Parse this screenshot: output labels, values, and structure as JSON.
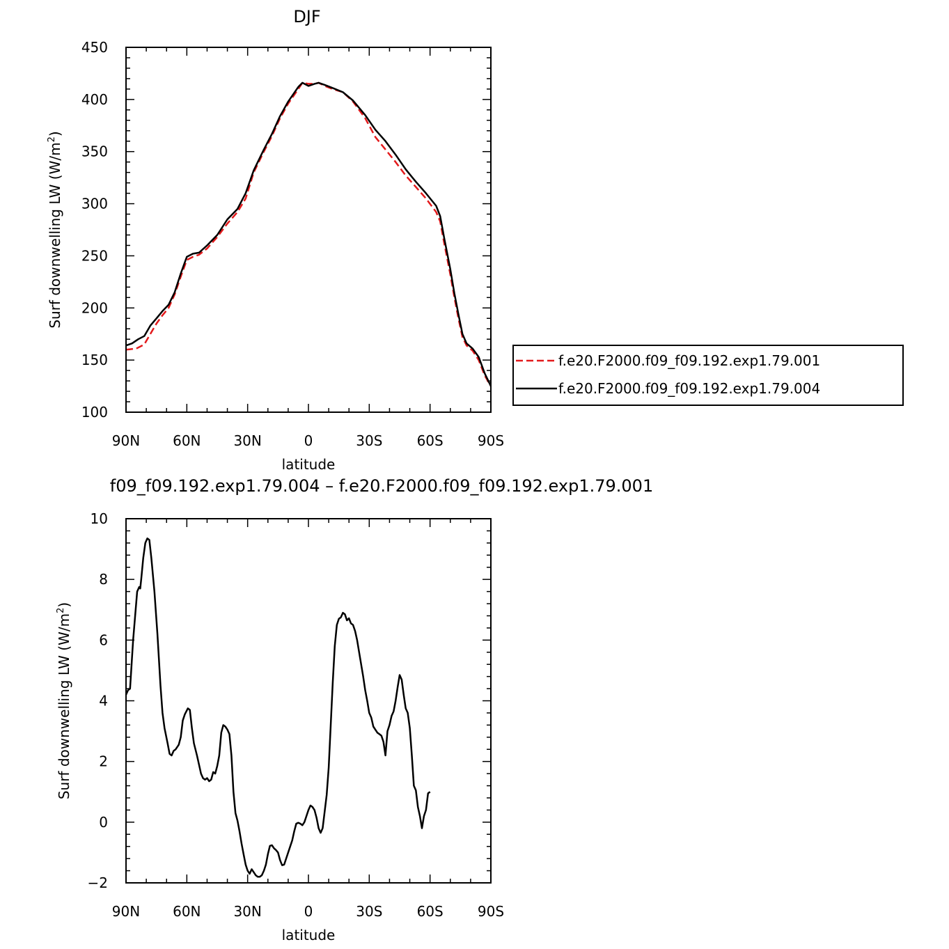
{
  "chart_data": [
    {
      "type": "line",
      "title": "DJF",
      "xlabel": "latitude",
      "ylabel": "Surf downwelling LW (W/m²)",
      "ylabel_text": "Surf  downwelling LW (W/m",
      "ylabel_sup": "2",
      "ylabel_end": ")",
      "xlim": [
        -90,
        90
      ],
      "ylim": [
        100,
        450
      ],
      "xticks": [
        -90,
        -60,
        -30,
        0,
        30,
        60,
        90
      ],
      "xtick_labels": [
        "90N",
        "60N",
        "30N",
        "0",
        "30S",
        "60S",
        "90S"
      ],
      "yticks": [
        100,
        150,
        200,
        250,
        300,
        350,
        400,
        450
      ],
      "ytick_labels": [
        "100",
        "150",
        "200",
        "250",
        "300",
        "350",
        "400",
        "450"
      ],
      "legend": {
        "placement": "right",
        "entries": [
          {
            "label": "f.e20.F2000.f09_f09.192.exp1.79.001",
            "color": "#e31a1c",
            "dash": true
          },
          {
            "label": "f.e20.F2000.f09_f09.192.exp1.79.004",
            "color": "#000000",
            "dash": false
          }
        ]
      },
      "series": [
        {
          "name": "f.e20.F2000.f09_f09.192.exp1.79.001",
          "color": "#e31a1c",
          "dashed": true,
          "points": [
            [
              -90,
              160
            ],
            [
              -85,
              161
            ],
            [
              -81,
              165
            ],
            [
              -78,
              175
            ],
            [
              -75,
              185
            ],
            [
              -72,
              193
            ],
            [
              -69,
              200
            ],
            [
              -66,
              213
            ],
            [
              -63,
              230
            ],
            [
              -60,
              246
            ],
            [
              -57,
              249
            ],
            [
              -54,
              251
            ],
            [
              -50,
              257
            ],
            [
              -45,
              268
            ],
            [
              -40,
              281
            ],
            [
              -35,
              292
            ],
            [
              -31,
              305
            ],
            [
              -27,
              330
            ],
            [
              -22,
              350
            ],
            [
              -18,
              365
            ],
            [
              -14,
              382
            ],
            [
              -10,
              396
            ],
            [
              -5,
              410
            ],
            [
              -3,
              416
            ],
            [
              0,
              415
            ],
            [
              3,
              415
            ],
            [
              5,
              416
            ],
            [
              8,
              413
            ],
            [
              12,
              410
            ],
            [
              17,
              407
            ],
            [
              22,
              398
            ],
            [
              28,
              382
            ],
            [
              33,
              364
            ],
            [
              38,
              352
            ],
            [
              43,
              340
            ],
            [
              48,
              327
            ],
            [
              53,
              316
            ],
            [
              58,
              305
            ],
            [
              63,
              292
            ],
            [
              65,
              283
            ],
            [
              67,
              262
            ],
            [
              70,
              232
            ],
            [
              72,
              210
            ],
            [
              74,
              190
            ],
            [
              76,
              172
            ],
            [
              78,
              164
            ],
            [
              81,
              159
            ],
            [
              84,
              150
            ],
            [
              87,
              135
            ],
            [
              90,
              125
            ]
          ]
        },
        {
          "name": "f.e20.F2000.f09_f09.192.exp1.79.004",
          "color": "#000000",
          "dashed": false,
          "points": [
            [
              -90,
              164
            ],
            [
              -87,
              166
            ],
            [
              -84,
              170
            ],
            [
              -81,
              173
            ],
            [
              -78,
              183
            ],
            [
              -75,
              190
            ],
            [
              -72,
              197
            ],
            [
              -69,
              203
            ],
            [
              -66,
              215
            ],
            [
              -63,
              233
            ],
            [
              -60,
              249
            ],
            [
              -57,
              252
            ],
            [
              -54,
              253
            ],
            [
              -50,
              260
            ],
            [
              -45,
              270
            ],
            [
              -40,
              285
            ],
            [
              -35,
              295
            ],
            [
              -31,
              310
            ],
            [
              -27,
              332
            ],
            [
              -22,
              352
            ],
            [
              -18,
              367
            ],
            [
              -14,
              384
            ],
            [
              -10,
              398
            ],
            [
              -5,
              412
            ],
            [
              -3,
              416
            ],
            [
              0,
              413
            ],
            [
              3,
              415
            ],
            [
              5,
              416
            ],
            [
              8,
              414
            ],
            [
              12,
              411
            ],
            [
              17,
              407
            ],
            [
              22,
              399
            ],
            [
              28,
              385
            ],
            [
              33,
              371
            ],
            [
              38,
              360
            ],
            [
              43,
              347
            ],
            [
              48,
              333
            ],
            [
              53,
              321
            ],
            [
              58,
              310
            ],
            [
              63,
              298
            ],
            [
              65,
              288
            ],
            [
              67,
              267
            ],
            [
              70,
              237
            ],
            [
              72,
              214
            ],
            [
              74,
              194
            ],
            [
              76,
              175
            ],
            [
              78,
              166
            ],
            [
              81,
              161
            ],
            [
              84,
              153
            ],
            [
              87,
              137
            ],
            [
              90,
              125
            ]
          ]
        }
      ]
    },
    {
      "type": "line",
      "title": "f09_f09.192.exp1.79.004 – f.e20.F2000.f09_f09.192.exp1.79.001",
      "xlabel": "latitude",
      "ylabel": "Surf downwelling LW (W/m²)",
      "ylabel_text": "Surf  downwelling LW (W/m",
      "ylabel_sup": "2",
      "ylabel_end": ")",
      "xlim": [
        -90,
        90
      ],
      "ylim": [
        -2,
        10
      ],
      "xticks": [
        -90,
        -60,
        -30,
        0,
        30,
        60,
        90
      ],
      "xtick_labels": [
        "90N",
        "60N",
        "30N",
        "0",
        "30S",
        "60S",
        "90S"
      ],
      "yticks": [
        -2,
        0,
        2,
        4,
        6,
        8,
        10
      ],
      "ytick_labels": [
        "−2",
        "0",
        "2",
        "4",
        "6",
        "8",
        "10"
      ],
      "series": [
        {
          "color": "#000000",
          "dashed": false,
          "points": [
            [
              -90,
              4.2
            ],
            [
              -89,
              4.35
            ],
            [
              -88,
              4.4
            ],
            [
              -86.5,
              6.0
            ],
            [
              -84.5,
              7.6
            ],
            [
              -83.5,
              7.75
            ],
            [
              -83,
              7.7
            ],
            [
              -82.5,
              8.0
            ],
            [
              -81.5,
              8.7
            ],
            [
              -80.5,
              9.2
            ],
            [
              -79.5,
              9.35
            ],
            [
              -78.5,
              9.3
            ],
            [
              -77.5,
              8.7
            ],
            [
              -76,
              7.6
            ],
            [
              -74.5,
              6.2
            ],
            [
              -73,
              4.5
            ],
            [
              -72,
              3.6
            ],
            [
              -71,
              3.1
            ],
            [
              -69.5,
              2.6
            ],
            [
              -68.5,
              2.25
            ],
            [
              -67.5,
              2.2
            ],
            [
              -66.5,
              2.35
            ],
            [
              -65.5,
              2.4
            ],
            [
              -64,
              2.55
            ],
            [
              -63,
              2.8
            ],
            [
              -62,
              3.35
            ],
            [
              -61,
              3.55
            ],
            [
              -59.5,
              3.75
            ],
            [
              -58.5,
              3.7
            ],
            [
              -57.5,
              3.1
            ],
            [
              -56.5,
              2.6
            ],
            [
              -55,
              2.2
            ],
            [
              -54,
              1.9
            ],
            [
              -53,
              1.6
            ],
            [
              -52,
              1.45
            ],
            [
              -51,
              1.4
            ],
            [
              -50,
              1.45
            ],
            [
              -49,
              1.35
            ],
            [
              -48,
              1.4
            ],
            [
              -47,
              1.65
            ],
            [
              -46,
              1.6
            ],
            [
              -45,
              1.85
            ],
            [
              -44,
              2.2
            ],
            [
              -43,
              2.95
            ],
            [
              -42,
              3.2
            ],
            [
              -41,
              3.15
            ],
            [
              -40,
              3.05
            ],
            [
              -39,
              2.9
            ],
            [
              -38,
              2.2
            ],
            [
              -37,
              1.0
            ],
            [
              -36,
              0.3
            ],
            [
              -35,
              0.05
            ],
            [
              -34,
              -0.3
            ],
            [
              -33,
              -0.7
            ],
            [
              -32,
              -1.05
            ],
            [
              -31,
              -1.4
            ],
            [
              -30,
              -1.6
            ],
            [
              -29,
              -1.7
            ],
            [
              -28,
              -1.55
            ],
            [
              -27,
              -1.65
            ],
            [
              -26,
              -1.75
            ],
            [
              -25,
              -1.8
            ],
            [
              -24,
              -1.8
            ],
            [
              -23,
              -1.75
            ],
            [
              -22,
              -1.6
            ],
            [
              -21,
              -1.4
            ],
            [
              -20,
              -1.05
            ],
            [
              -19,
              -0.78
            ],
            [
              -18,
              -0.76
            ],
            [
              -17,
              -0.86
            ],
            [
              -16,
              -0.92
            ],
            [
              -15,
              -1.0
            ],
            [
              -14,
              -1.25
            ],
            [
              -13,
              -1.42
            ],
            [
              -12,
              -1.4
            ],
            [
              -11,
              -1.2
            ],
            [
              -10,
              -1.0
            ],
            [
              -9,
              -0.8
            ],
            [
              -8,
              -0.6
            ],
            [
              -7,
              -0.3
            ],
            [
              -6,
              -0.05
            ],
            [
              -5,
              -0.02
            ],
            [
              -4,
              -0.05
            ],
            [
              -3,
              -0.1
            ],
            [
              -2,
              0.0
            ],
            [
              -1,
              0.2
            ],
            [
              0,
              0.4
            ],
            [
              1,
              0.55
            ],
            [
              2,
              0.5
            ],
            [
              3,
              0.4
            ],
            [
              4,
              0.15
            ],
            [
              5,
              -0.2
            ],
            [
              6,
              -0.35
            ],
            [
              7,
              -0.2
            ],
            [
              8,
              0.35
            ],
            [
              9,
              0.9
            ],
            [
              10,
              1.8
            ],
            [
              11,
              3.2
            ],
            [
              12,
              4.6
            ],
            [
              13,
              5.8
            ],
            [
              14,
              6.5
            ],
            [
              15,
              6.7
            ],
            [
              16,
              6.75
            ],
            [
              17,
              6.9
            ],
            [
              18,
              6.85
            ],
            [
              19,
              6.65
            ],
            [
              20,
              6.72
            ],
            [
              21,
              6.55
            ],
            [
              22,
              6.5
            ],
            [
              23,
              6.3
            ],
            [
              24,
              6.0
            ],
            [
              25,
              5.6
            ],
            [
              26,
              5.2
            ],
            [
              27,
              4.8
            ],
            [
              28,
              4.35
            ],
            [
              29,
              4.0
            ],
            [
              30,
              3.6
            ],
            [
              31,
              3.45
            ],
            [
              32,
              3.15
            ],
            [
              33,
              3.05
            ],
            [
              34,
              2.95
            ],
            [
              35,
              2.9
            ],
            [
              36,
              2.85
            ],
            [
              37,
              2.65
            ],
            [
              38,
              2.2
            ],
            [
              39,
              3.0
            ],
            [
              40,
              3.2
            ],
            [
              41,
              3.5
            ],
            [
              42,
              3.65
            ],
            [
              43,
              4.0
            ],
            [
              44,
              4.45
            ],
            [
              45,
              4.85
            ],
            [
              46,
              4.7
            ],
            [
              47,
              4.2
            ],
            [
              48,
              3.75
            ],
            [
              49,
              3.6
            ],
            [
              50,
              3.1
            ],
            [
              51,
              2.2
            ],
            [
              52,
              1.2
            ],
            [
              53,
              1.05
            ],
            [
              54,
              0.5
            ],
            [
              55,
              0.2
            ],
            [
              56,
              -0.2
            ],
            [
              57,
              0.2
            ],
            [
              58,
              0.4
            ],
            [
              59,
              0.95
            ],
            [
              60,
              1.0
            ]
          ]
        }
      ]
    }
  ]
}
